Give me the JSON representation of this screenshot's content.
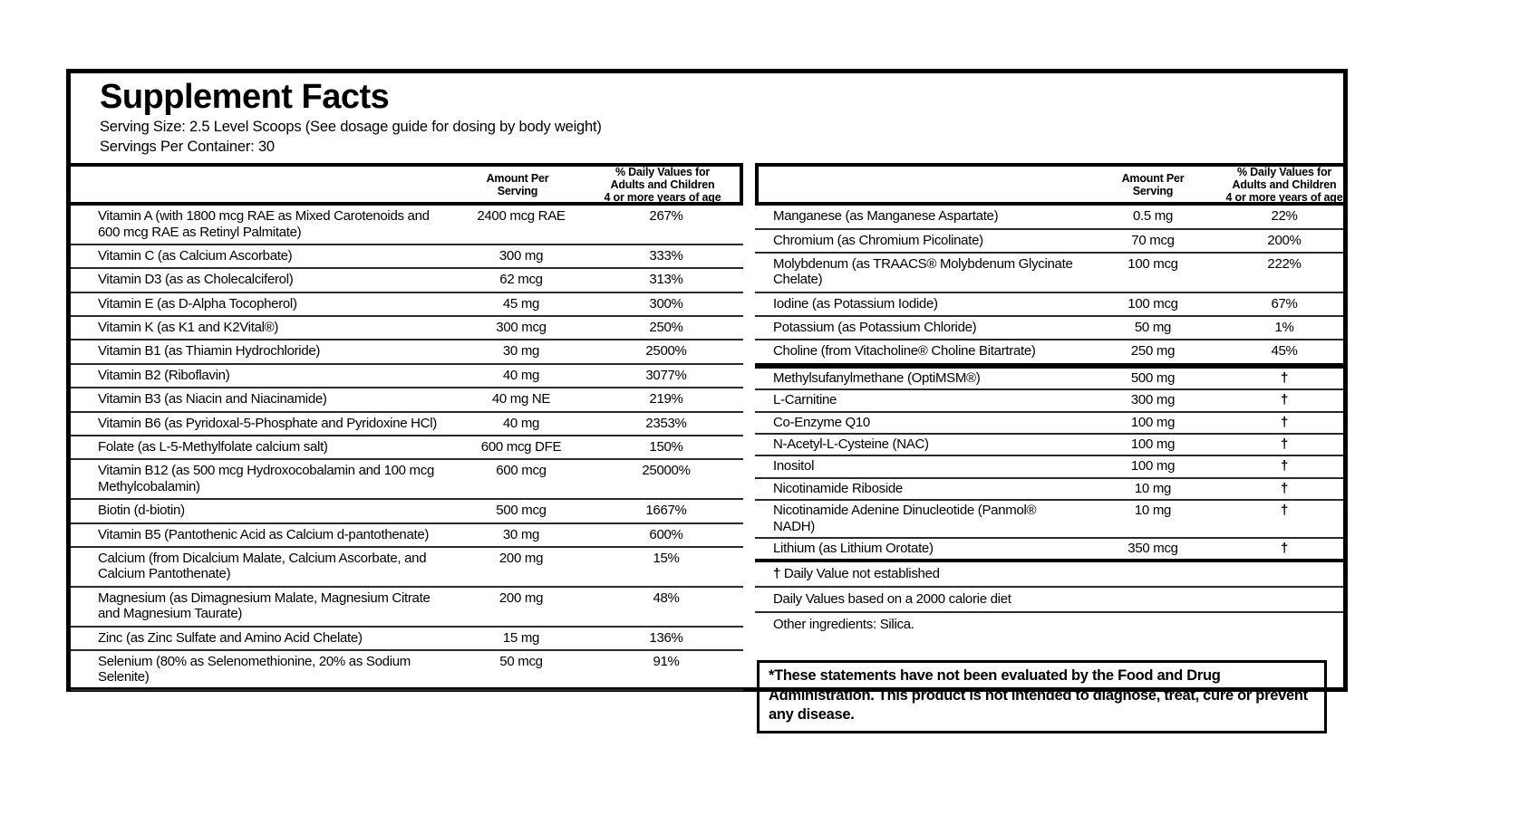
{
  "title": "Supplement Facts",
  "serving_size": "Serving Size: 2.5 Level Scoops (See dosage guide for dosing by body weight)",
  "servings_per_container": "Servings Per Container: 30",
  "column_headers": {
    "amount": "Amount Per\nServing",
    "daily_value": "% Daily Values for\nAdults and Children\n4 or more years of age"
  },
  "left_table": {
    "rows": [
      {
        "name": "Vitamin A (with 1800 mcg RAE as Mixed Carotenoids and 600 mcg RAE as Retinyl Palmitate)",
        "amount": "2400 mcg RAE",
        "dv": "267%"
      },
      {
        "name": "Vitamin C (as Calcium Ascorbate)",
        "amount": "300 mg",
        "dv": "333%"
      },
      {
        "name": "Vitamin D3 (as as Cholecalciferol)",
        "amount": "62 mcg",
        "dv": "313%"
      },
      {
        "name": "Vitamin E (as D-Alpha Tocopherol)",
        "amount": "45 mg",
        "dv": "300%"
      },
      {
        "name": "Vitamin K (as K1 and K2Vital®)",
        "amount": "300 mcg",
        "dv": "250%"
      },
      {
        "name": "Vitamin B1 (as Thiamin Hydrochloride)",
        "amount": "30 mg",
        "dv": "2500%"
      },
      {
        "name": "Vitamin B2 (Riboflavin)",
        "amount": "40 mg",
        "dv": "3077%"
      },
      {
        "name": "Vitamin B3 (as Niacin and Niacinamide)",
        "amount": "40 mg NE",
        "dv": "219%"
      },
      {
        "name": "Vitamin B6 (as Pyridoxal-5-Phosphate and Pyridoxine HCl)",
        "amount": "40 mg",
        "dv": "2353%"
      },
      {
        "name": "Folate (as L-5-Methylfolate calcium salt)",
        "amount": "600 mcg DFE",
        "dv": "150%"
      },
      {
        "name": "Vitamin B12 (as 500 mcg Hydroxocobalamin and 100 mcg Methylcobalamin)",
        "amount": "600 mcg",
        "dv": "25000%"
      },
      {
        "name": "Biotin (d-biotin)",
        "amount": "500 mcg",
        "dv": "1667%"
      },
      {
        "name": "Vitamin B5 (Pantothenic Acid as Calcium d-pantothenate)",
        "amount": "30 mg",
        "dv": "600%"
      },
      {
        "name": "Calcium (from Dicalcium Malate, Calcium Ascorbate, and Calcium Pantothenate)",
        "amount": "200 mg",
        "dv": "15%"
      },
      {
        "name": "Magnesium (as Dimagnesium Malate, Magnesium Citrate and Magnesium Taurate)",
        "amount": "200 mg",
        "dv": "48%"
      },
      {
        "name": "Zinc (as Zinc Sulfate and Amino Acid Chelate)",
        "amount": "15 mg",
        "dv": "136%"
      },
      {
        "name": "Selenium (80% as Selenomethionine, 20% as Sodium Selenite)",
        "amount": "50 mcg",
        "dv": "91%"
      }
    ]
  },
  "right_table": {
    "main_rows": [
      {
        "name": "Manganese (as Manganese Aspartate)",
        "amount": "0.5 mg",
        "dv": "22%"
      },
      {
        "name": "Chromium (as Chromium Picolinate)",
        "amount": "70 mcg",
        "dv": "200%"
      },
      {
        "name": "Molybdenum (as TRAACS® Molybdenum Glycinate Chelate)",
        "amount": "100 mcg",
        "dv": "222%"
      },
      {
        "name": "Iodine (as Potassium Iodide)",
        "amount": "100 mcg",
        "dv": "67%"
      },
      {
        "name": "Potassium (as Potassium Chloride)",
        "amount": "50 mg",
        "dv": "1%"
      },
      {
        "name": "Choline (from Vitacholine® Choline Bitartrate)",
        "amount": "250 mg",
        "dv": "45%"
      }
    ],
    "other_rows": [
      {
        "name": "Methylsufanylmethane (OptiMSM®)",
        "amount": "500 mg",
        "dv": "†"
      },
      {
        "name": "L-Carnitine",
        "amount": "300 mg",
        "dv": "†"
      },
      {
        "name": "Co-Enzyme Q10",
        "amount": "100 mg",
        "dv": "†"
      },
      {
        "name": "N-Acetyl-L-Cysteine (NAC)",
        "amount": "100 mg",
        "dv": "†"
      },
      {
        "name": "Inositol",
        "amount": "100 mg",
        "dv": "†"
      },
      {
        "name": "Nicotinamide Riboside",
        "amount": "10 mg",
        "dv": "†"
      },
      {
        "name": "Nicotinamide Adenine Dinucleotide (Panmol® NADH)",
        "amount": "10 mg",
        "dv": "†"
      },
      {
        "name": "Lithium (as Lithium Orotate)",
        "amount": "350 mcg",
        "dv": "†"
      }
    ]
  },
  "footnotes": {
    "dagger_symbol": "†",
    "dagger_text": "Daily Value not established",
    "daily_values_basis": "Daily Values based on a 2000 calorie diet",
    "other_ingredients": "Other ingredients: Silica."
  },
  "disclaimer": "*These statements have not been evaluated by the Food and Drug Administration. This product is not intended to diagnose, treat, cure or prevent any disease.",
  "colors": {
    "text": "#000000",
    "background": "#ffffff",
    "border": "#000000"
  }
}
